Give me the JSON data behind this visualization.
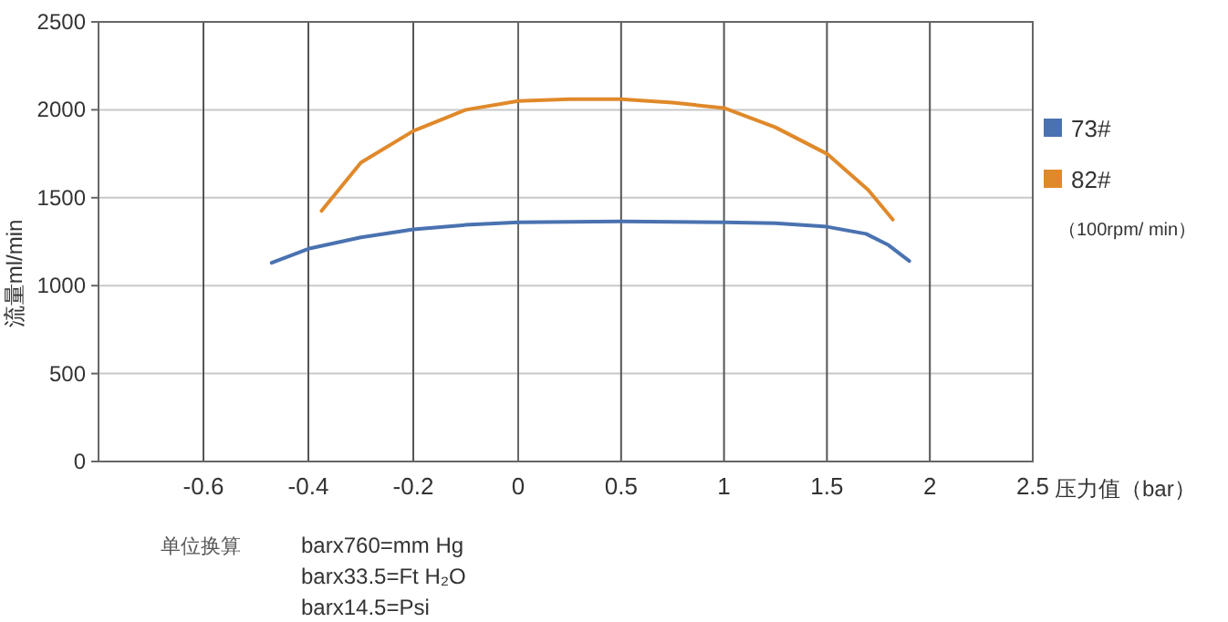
{
  "chart_data": [
    {
      "type": "line",
      "ylabel": "流量ml/min",
      "xlim": [
        -0.8,
        0
      ],
      "xticks": [
        -0.6,
        -0.4,
        -0.2
      ],
      "ylim": [
        0,
        2500
      ],
      "yticks": [
        0,
        500,
        1000,
        1500,
        2000,
        2500
      ],
      "grid": true,
      "marker": "none",
      "line_style": "solid",
      "series": [
        {
          "color": "#4a72b0",
          "x": [
            -0.47,
            -0.4,
            -0.3,
            -0.2,
            -0.1,
            0
          ],
          "values": [
            1130,
            1210,
            1275,
            1320,
            1345,
            1360
          ]
        },
        {
          "color": "#e0892a",
          "x": [
            -0.375,
            -0.3,
            -0.2,
            -0.1,
            0
          ],
          "values": [
            1425,
            1700,
            1880,
            2000,
            2050
          ]
        }
      ],
      "annotations": [
        "单位换算",
        "barx760=mm Hg",
        "barx33.5=Ft H₂O",
        "barx14.5=Psi"
      ]
    },
    {
      "type": "line",
      "xlabel": "压力值（bar）",
      "legend_title": "（100rpm/ min）",
      "xlim": [
        0,
        2.5
      ],
      "xticks": [
        0,
        0.5,
        1,
        1.5,
        2,
        2.5
      ],
      "ylim": [
        0,
        2500
      ],
      "yticks": [
        0,
        500,
        1000,
        1500,
        2000,
        2500
      ],
      "tick_labels": "x",
      "grid": true,
      "legend": "right",
      "marker": "none",
      "line_style": "solid",
      "series": [
        {
          "name": "73#",
          "color": "#4a72b0",
          "x": [
            0,
            0.5,
            1,
            1.25,
            1.5,
            1.69,
            1.8,
            1.9
          ],
          "values": [
            1360,
            1365,
            1360,
            1355,
            1335,
            1295,
            1230,
            1140
          ]
        },
        {
          "name": "82#",
          "color": "#e0892a",
          "x": [
            0,
            0.25,
            0.5,
            0.75,
            1,
            1.25,
            1.5,
            1.7,
            1.82
          ],
          "values": [
            2050,
            2060,
            2060,
            2040,
            2010,
            1900,
            1750,
            1545,
            1375
          ]
        }
      ]
    }
  ]
}
